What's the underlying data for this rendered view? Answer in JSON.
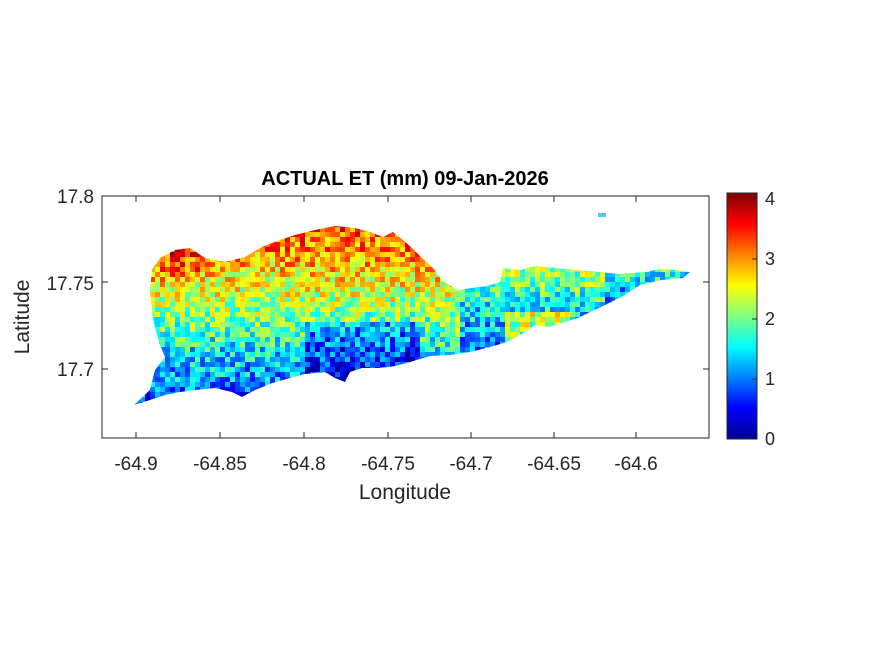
{
  "map": {
    "title": "ACTUAL ET (mm) 09-Jan-2026",
    "xlabel": "Longitude",
    "ylabel": "Latitude",
    "x_ticks": [
      "-64.9",
      "-64.85",
      "-64.8",
      "-64.75",
      "-64.7",
      "-64.65",
      "-64.6"
    ],
    "y_ticks": [
      "17.8",
      "17.75",
      "17.7"
    ],
    "colorbar": {
      "ticks": [
        "0",
        "1",
        "2",
        "3",
        "4"
      ],
      "colormap": "jet",
      "range": [
        0,
        4.1
      ]
    }
  },
  "chart_data": {
    "type": "heatmap",
    "title": "ACTUAL ET (mm) 09-Jan-2026",
    "xlabel": "Longitude",
    "ylabel": "Latitude",
    "xlim": [
      -64.92,
      -64.555
    ],
    "ylim": [
      17.655,
      17.8
    ],
    "x_ticks": [
      -64.9,
      -64.85,
      -64.8,
      -64.75,
      -64.7,
      -64.65,
      -64.6
    ],
    "y_ticks": [
      17.7,
      17.75,
      17.8
    ],
    "colormap": "jet",
    "clim": [
      0,
      4.1
    ],
    "colorbar_ticks": [
      0,
      1,
      2,
      3,
      4
    ],
    "grid": false
  }
}
